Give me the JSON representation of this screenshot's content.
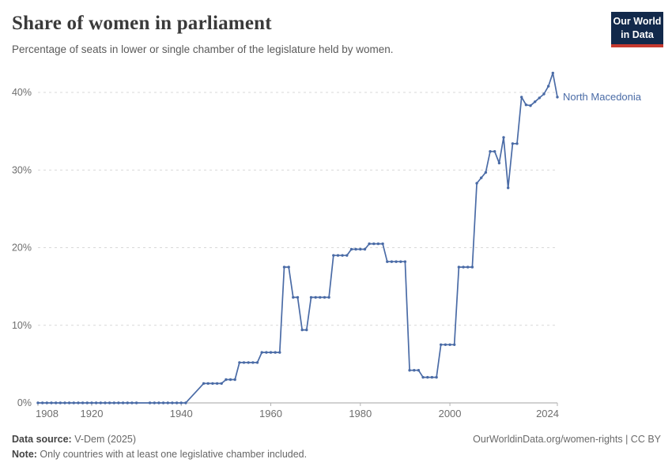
{
  "header": {
    "title": "Share of women in parliament",
    "subtitle": "Percentage of seats in lower or single chamber of the legislature held by women.",
    "logo_line1": "Our World",
    "logo_line2": "in Data"
  },
  "chart_data": {
    "type": "line",
    "title": "Share of women in parliament",
    "xlabel": "",
    "ylabel": "",
    "unit": "%",
    "x_range": [
      1908,
      2024
    ],
    "ylim": [
      0,
      44
    ],
    "y_ticks": [
      0,
      10,
      20,
      30,
      40
    ],
    "x_ticks": [
      1908,
      1920,
      1940,
      1960,
      1980,
      2000,
      2024
    ],
    "grid": "horizontal-dashed",
    "legend_position": "end-of-line-label",
    "line_color": "#4a6ba6",
    "grid_color": "#d8d8d8",
    "axis_line_color": "#a3a3a3",
    "tick_label_color": "#6e6e6e",
    "series": [
      {
        "name": "North Macedonia",
        "color": "#4a6ba6",
        "points": [
          [
            1908,
            0
          ],
          [
            1909,
            0
          ],
          [
            1910,
            0
          ],
          [
            1911,
            0
          ],
          [
            1912,
            0
          ],
          [
            1913,
            0
          ],
          [
            1914,
            0
          ],
          [
            1915,
            0
          ],
          [
            1916,
            0
          ],
          [
            1917,
            0
          ],
          [
            1918,
            0
          ],
          [
            1919,
            0
          ],
          [
            1920,
            0
          ],
          [
            1921,
            0
          ],
          [
            1922,
            0
          ],
          [
            1923,
            0
          ],
          [
            1924,
            0
          ],
          [
            1925,
            0
          ],
          [
            1926,
            0
          ],
          [
            1927,
            0
          ],
          [
            1928,
            0
          ],
          [
            1929,
            0
          ],
          [
            1930,
            0
          ],
          [
            1933,
            0
          ],
          [
            1934,
            0
          ],
          [
            1935,
            0
          ],
          [
            1936,
            0
          ],
          [
            1937,
            0
          ],
          [
            1938,
            0
          ],
          [
            1939,
            0
          ],
          [
            1940,
            0
          ],
          [
            1941,
            0
          ],
          [
            1945,
            2.5
          ],
          [
            1946,
            2.5
          ],
          [
            1947,
            2.5
          ],
          [
            1948,
            2.5
          ],
          [
            1949,
            2.5
          ],
          [
            1950,
            3
          ],
          [
            1951,
            3
          ],
          [
            1952,
            3
          ],
          [
            1953,
            5.2
          ],
          [
            1954,
            5.2
          ],
          [
            1955,
            5.2
          ],
          [
            1956,
            5.2
          ],
          [
            1957,
            5.2
          ],
          [
            1958,
            6.5
          ],
          [
            1959,
            6.5
          ],
          [
            1960,
            6.5
          ],
          [
            1961,
            6.5
          ],
          [
            1962,
            6.5
          ],
          [
            1963,
            17.5
          ],
          [
            1964,
            17.5
          ],
          [
            1965,
            13.6
          ],
          [
            1966,
            13.6
          ],
          [
            1967,
            9.4
          ],
          [
            1968,
            9.4
          ],
          [
            1969,
            13.6
          ],
          [
            1970,
            13.6
          ],
          [
            1971,
            13.6
          ],
          [
            1972,
            13.6
          ],
          [
            1973,
            13.6
          ],
          [
            1974,
            19
          ],
          [
            1975,
            19
          ],
          [
            1976,
            19
          ],
          [
            1977,
            19
          ],
          [
            1978,
            19.8
          ],
          [
            1979,
            19.8
          ],
          [
            1980,
            19.8
          ],
          [
            1981,
            19.8
          ],
          [
            1982,
            20.5
          ],
          [
            1983,
            20.5
          ],
          [
            1984,
            20.5
          ],
          [
            1985,
            20.5
          ],
          [
            1986,
            18.2
          ],
          [
            1987,
            18.2
          ],
          [
            1988,
            18.2
          ],
          [
            1989,
            18.2
          ],
          [
            1990,
            18.2
          ],
          [
            1991,
            4.2
          ],
          [
            1992,
            4.2
          ],
          [
            1993,
            4.2
          ],
          [
            1994,
            3.3
          ],
          [
            1995,
            3.3
          ],
          [
            1996,
            3.3
          ],
          [
            1997,
            3.3
          ],
          [
            1998,
            7.5
          ],
          [
            1999,
            7.5
          ],
          [
            2000,
            7.5
          ],
          [
            2001,
            7.5
          ],
          [
            2002,
            17.5
          ],
          [
            2003,
            17.5
          ],
          [
            2004,
            17.5
          ],
          [
            2005,
            17.5
          ],
          [
            2006,
            28.3
          ],
          [
            2007,
            29
          ],
          [
            2008,
            29.7
          ],
          [
            2009,
            32.4
          ],
          [
            2010,
            32.4
          ],
          [
            2011,
            30.9
          ],
          [
            2012,
            34.2
          ],
          [
            2013,
            27.7
          ],
          [
            2014,
            33.4
          ],
          [
            2015,
            33.4
          ],
          [
            2016,
            39.4
          ],
          [
            2017,
            38.4
          ],
          [
            2018,
            38.3
          ],
          [
            2019,
            38.8
          ],
          [
            2020,
            39.3
          ],
          [
            2021,
            39.8
          ],
          [
            2022,
            40.8
          ],
          [
            2023,
            42.5
          ],
          [
            2024,
            39.4
          ]
        ]
      }
    ]
  },
  "footer": {
    "datasource_label": "Data source:",
    "datasource_value": " V-Dem (2025)",
    "note_label": "Note:",
    "note_value": " Only countries with at least one legislative chamber included.",
    "link": "OurWorldinData.org/women-rights | CC BY"
  }
}
